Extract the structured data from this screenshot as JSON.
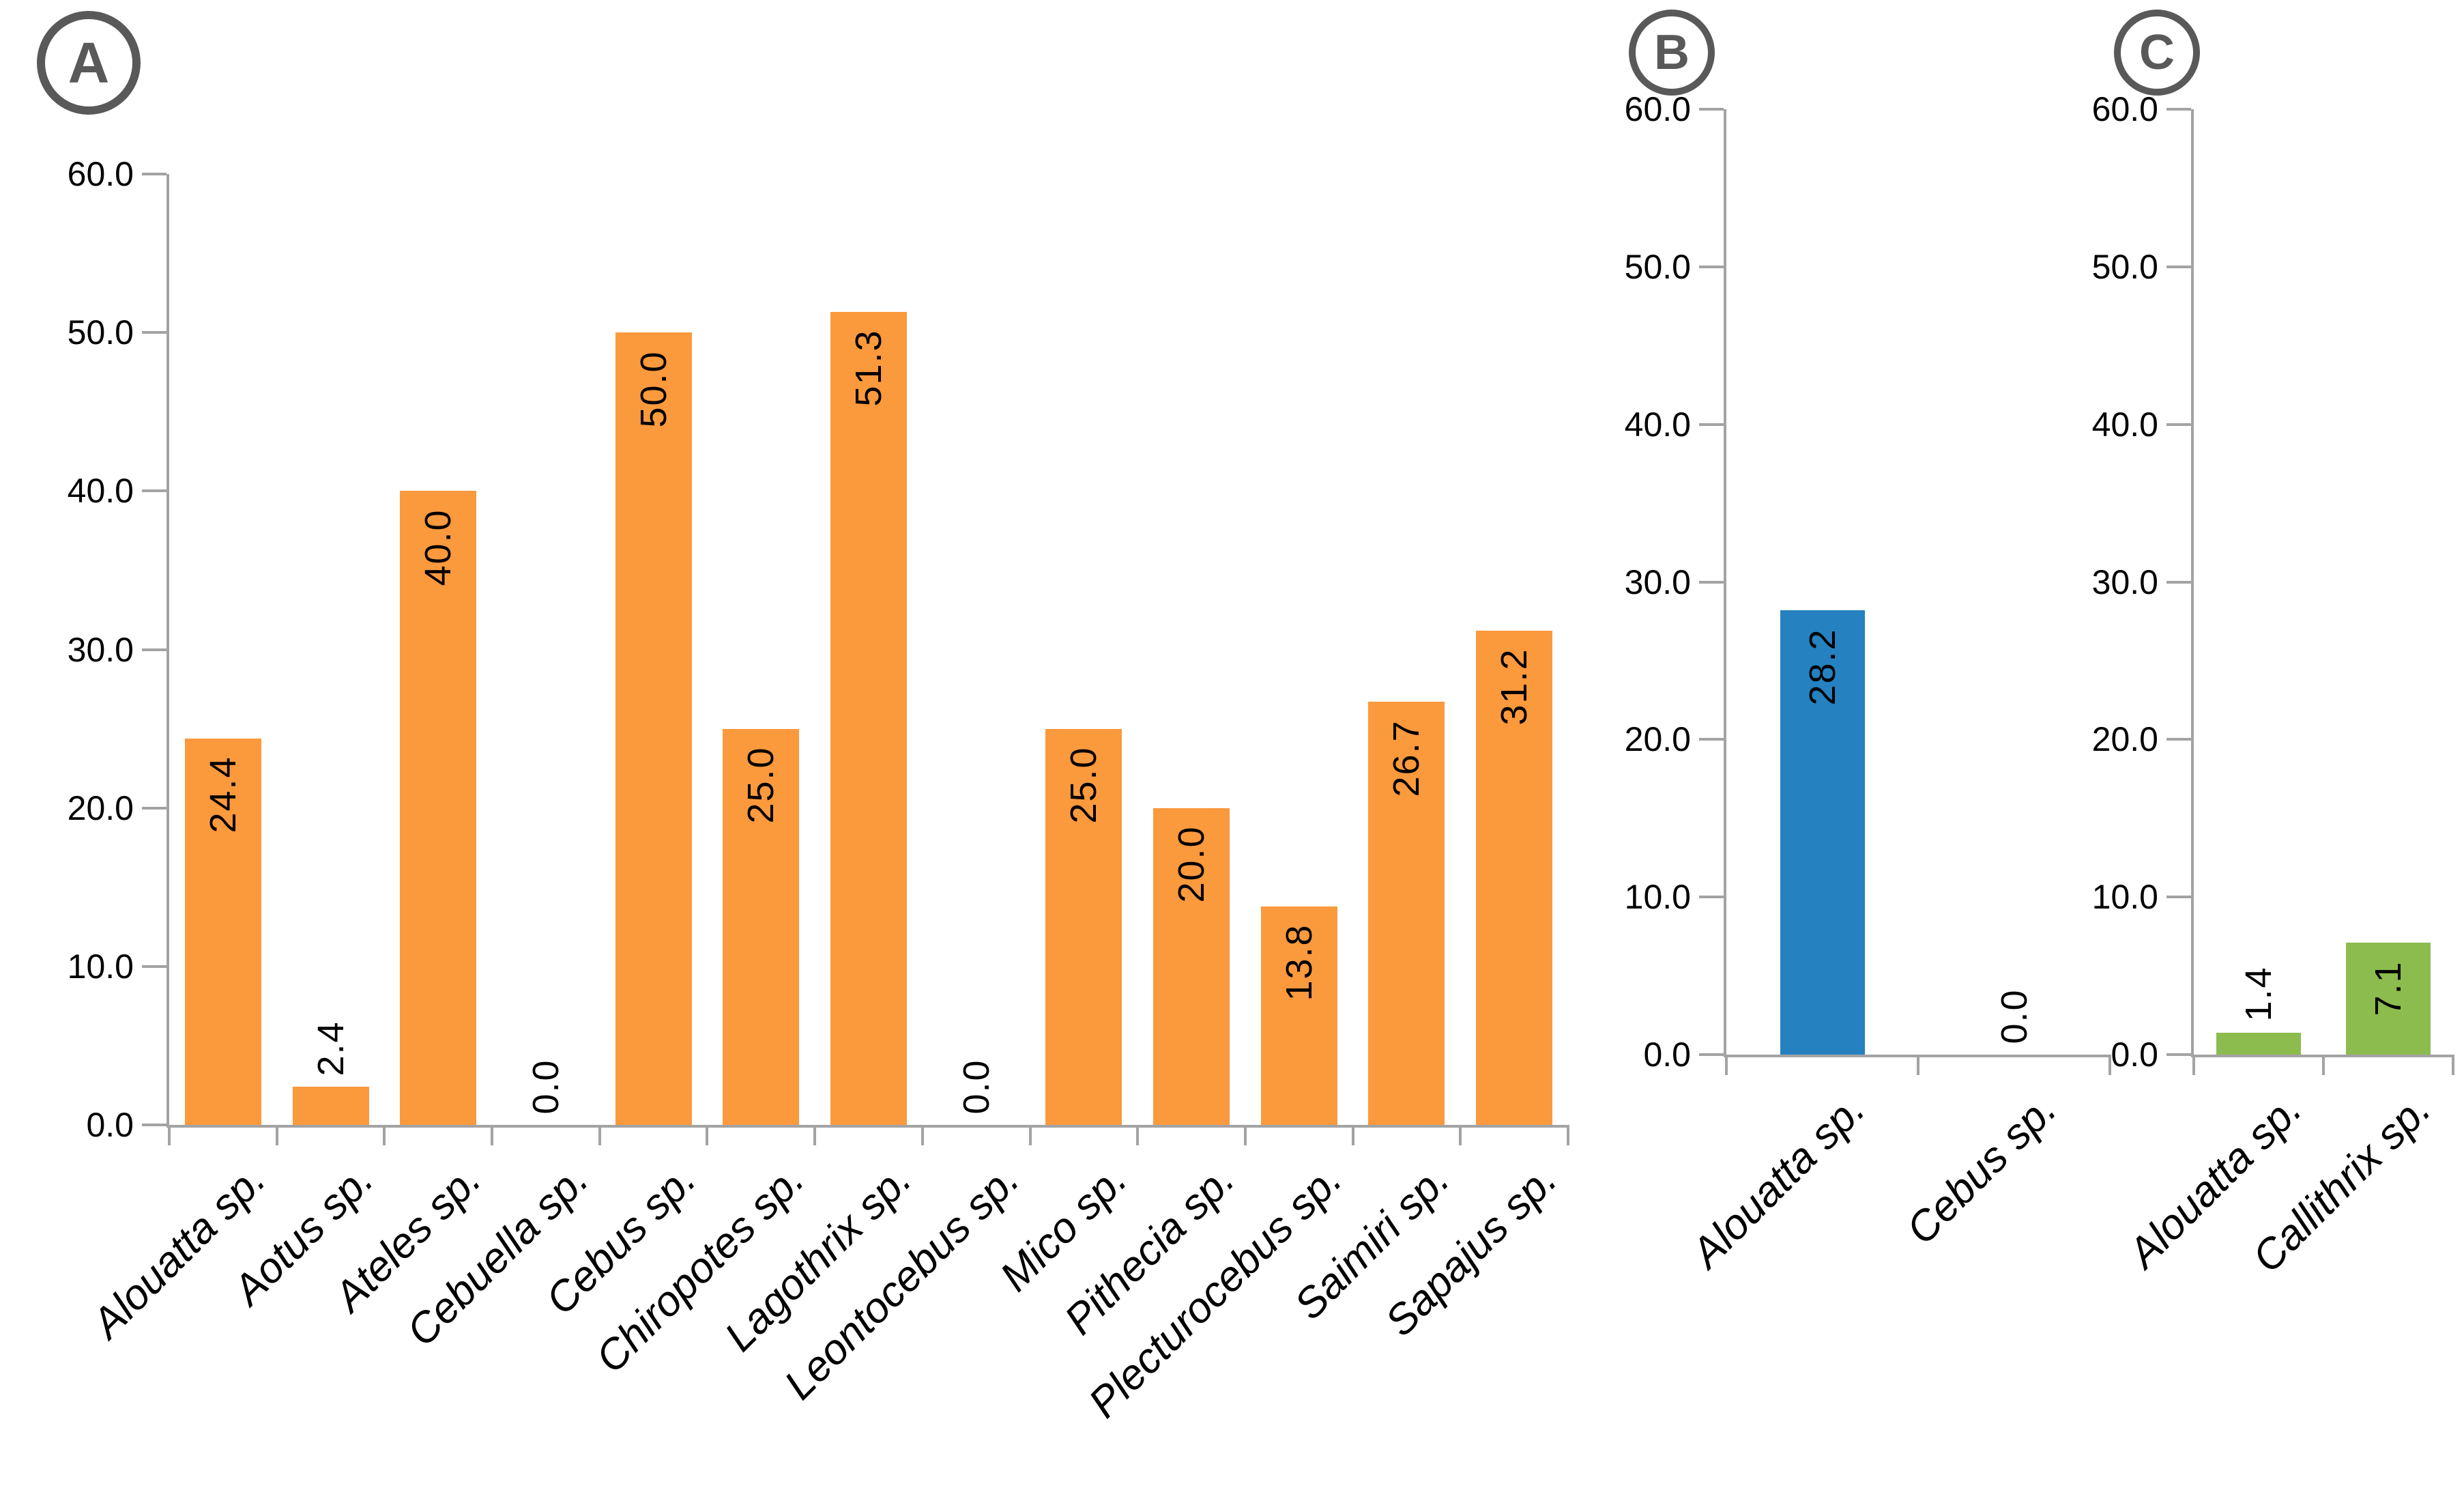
{
  "figure": {
    "background": "#ffffff",
    "axis_color": "#a3a3a3",
    "text_color": "#000000",
    "badge_color": "#595959"
  },
  "chart_data": [
    {
      "type": "bar",
      "panel_label": "A",
      "bar_color": "#FB993D",
      "categories": [
        "Alouatta sp.",
        "Aotus sp.",
        "Ateles sp.",
        "Cebuella sp.",
        "Cebus sp.",
        "Chiropotes sp.",
        "Lagothrix sp.",
        "Leontocebus sp.",
        "Mico sp.",
        "Pithecia sp.",
        "Plecturocebus sp.",
        "Saimiri sp.",
        "Sapajus sp."
      ],
      "values": [
        24.4,
        2.4,
        40.0,
        0.0,
        50.0,
        25.0,
        51.3,
        0.0,
        25.0,
        20.0,
        13.8,
        26.7,
        31.2
      ],
      "data_labels": [
        "24.4",
        "2.4",
        "40.0",
        "0.0",
        "50.0",
        "25.0",
        "51.3",
        "0.0",
        "25.0",
        "20.0",
        "13.8",
        "26.7",
        "31.2"
      ],
      "ylim": [
        0,
        60
      ],
      "ytick_step": 10,
      "ytick_labels": [
        "0.0",
        "10.0",
        "20.0",
        "30.0",
        "40.0",
        "50.0",
        "60.0"
      ],
      "grid": false,
      "legend": false,
      "xlabel": "",
      "ylabel": ""
    },
    {
      "type": "bar",
      "panel_label": "B",
      "bar_color": "#2581BF",
      "categories": [
        "Alouatta sp.",
        "Cebus sp."
      ],
      "values": [
        28.2,
        0.0
      ],
      "data_labels": [
        "28.2",
        "0.0"
      ],
      "ylim": [
        0,
        60
      ],
      "ytick_step": 10,
      "ytick_labels": [
        "0.0",
        "10.0",
        "20.0",
        "30.0",
        "40.0",
        "50.0",
        "60.0"
      ],
      "grid": false,
      "legend": false,
      "xlabel": "",
      "ylabel": ""
    },
    {
      "type": "bar",
      "panel_label": "C",
      "bar_color": "#8BBC4D",
      "categories": [
        "Alouatta sp.",
        "Callithrix sp."
      ],
      "values": [
        1.4,
        7.1
      ],
      "data_labels": [
        "1.4",
        "7.1"
      ],
      "ylim": [
        0,
        60
      ],
      "ytick_step": 10,
      "ytick_labels": [
        "0.0",
        "10.0",
        "20.0",
        "30.0",
        "40.0",
        "50.0",
        "60.0"
      ],
      "grid": false,
      "legend": false,
      "xlabel": "",
      "ylabel": ""
    }
  ]
}
